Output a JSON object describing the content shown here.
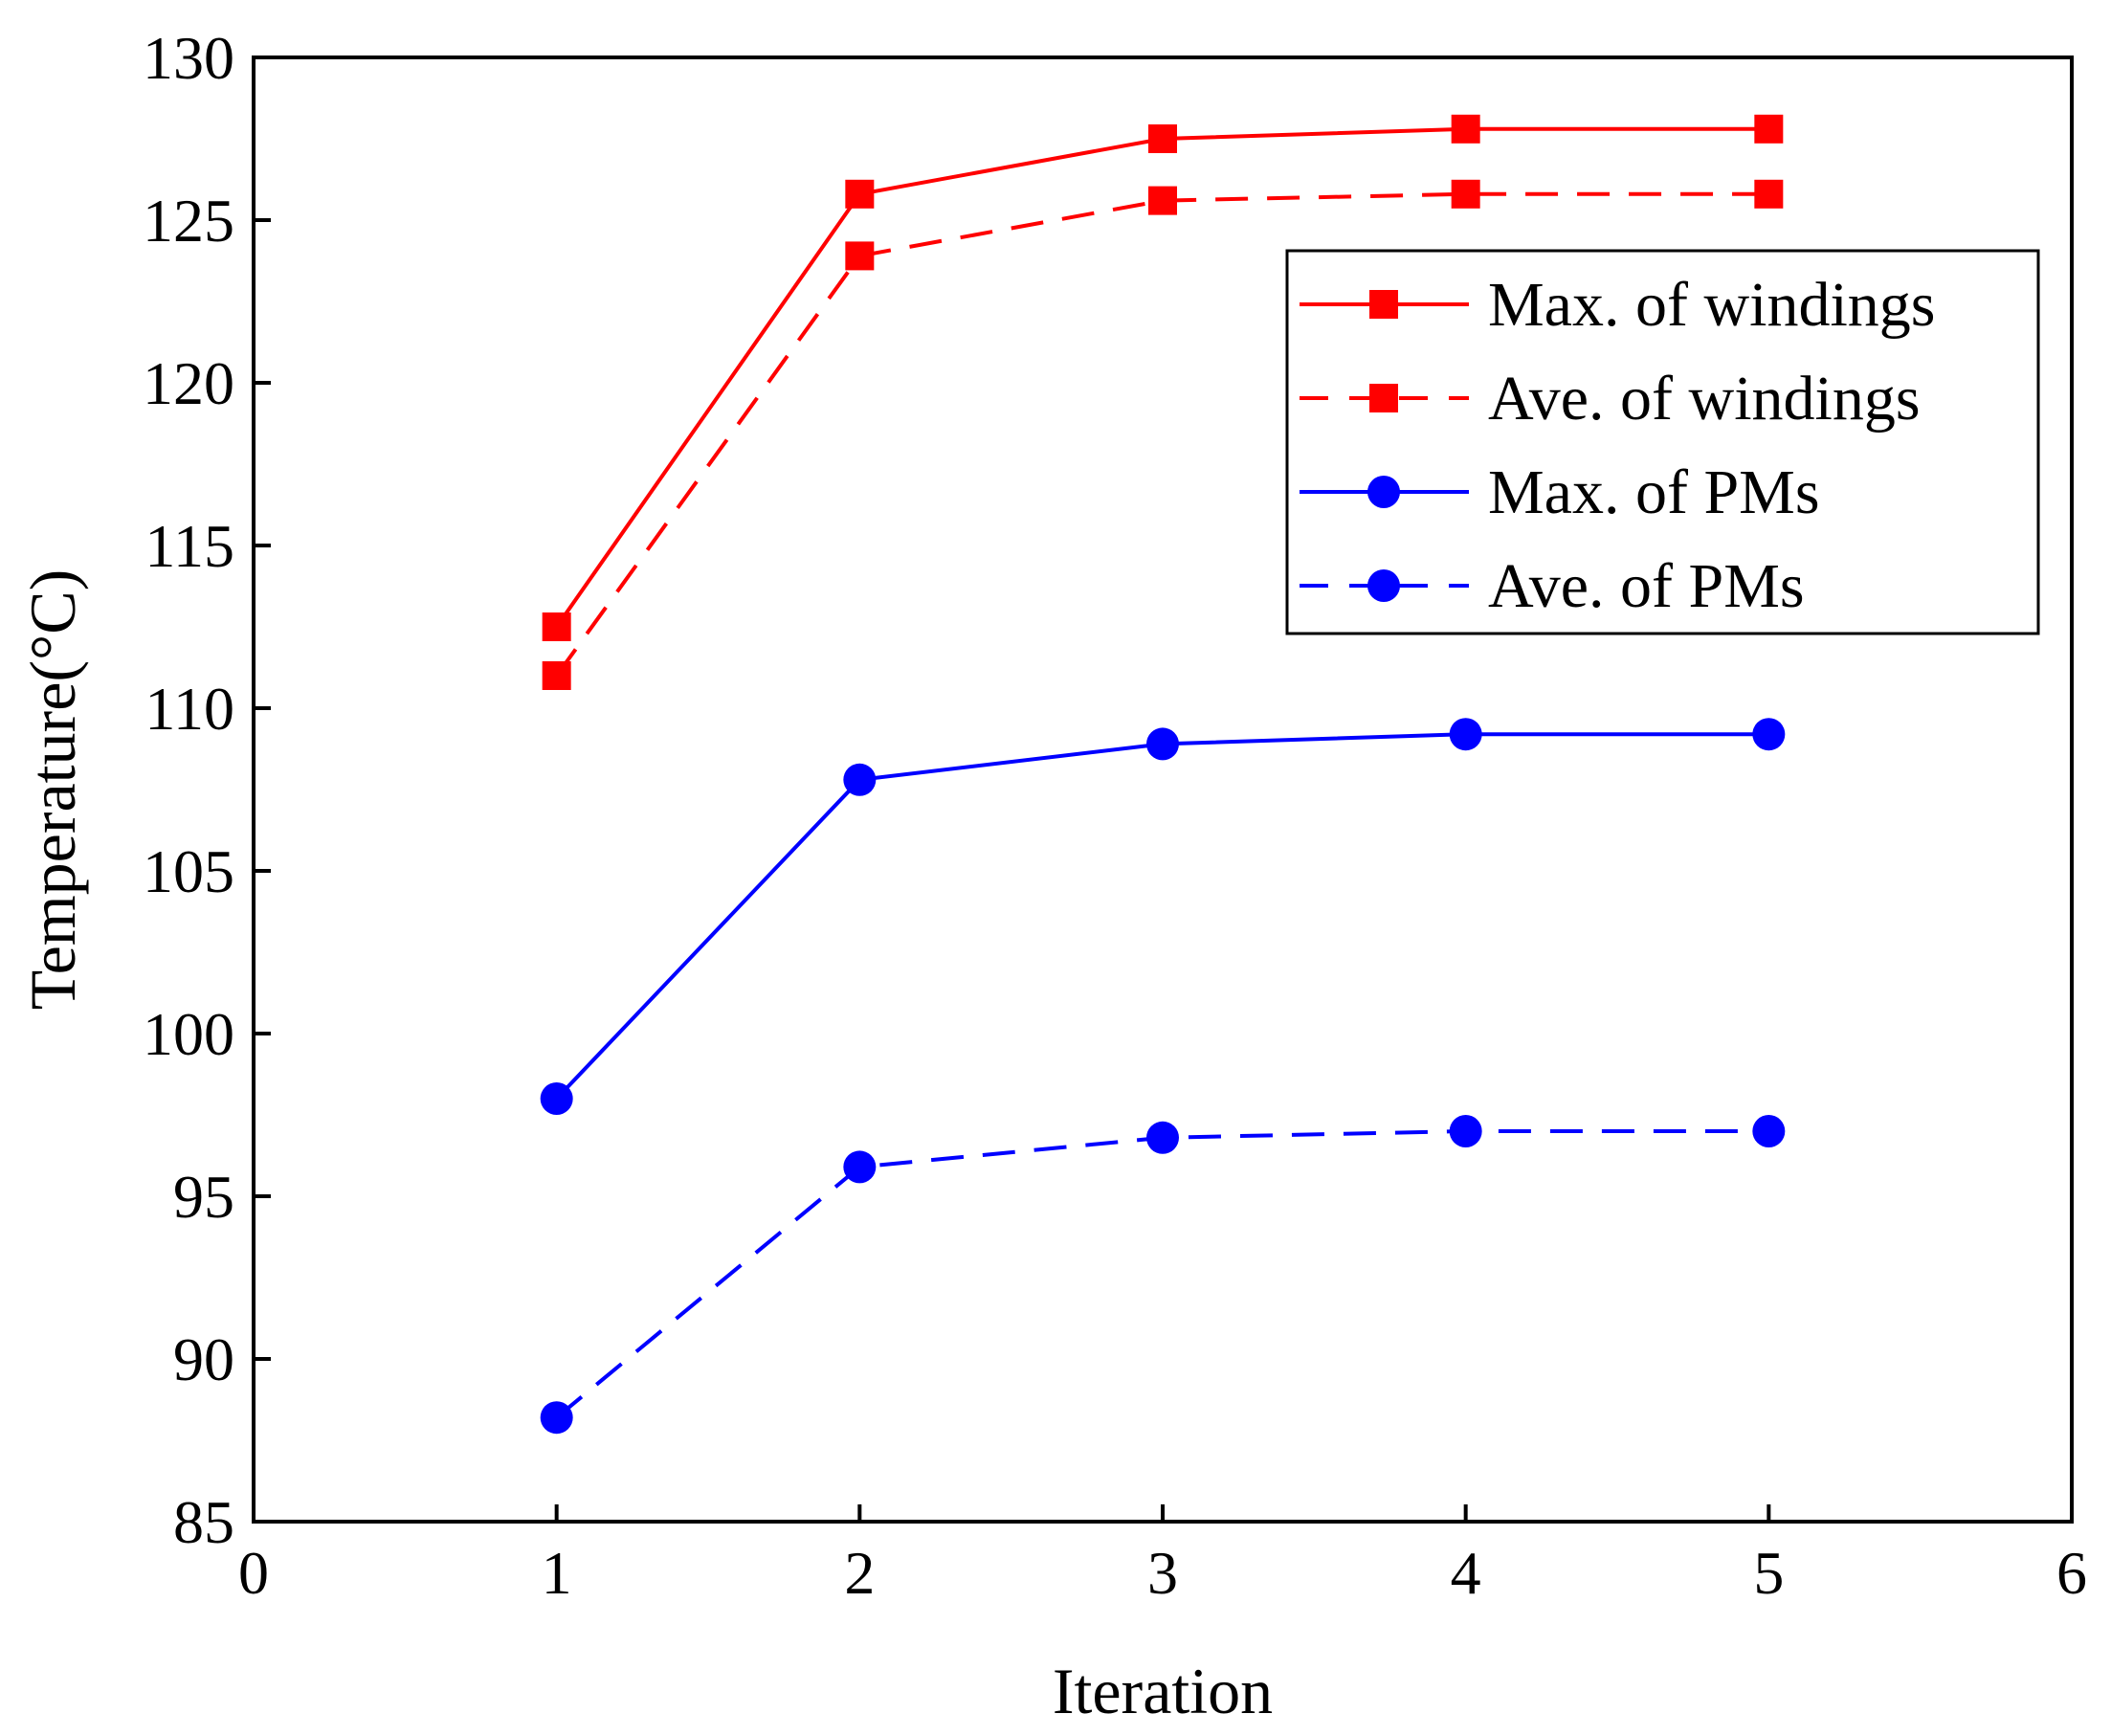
{
  "chart_data": {
    "type": "line",
    "xlabel": "Iteration",
    "ylabel": "Temperature(°C)",
    "xlim": [
      0,
      6
    ],
    "ylim": [
      85,
      130
    ],
    "x_ticks": [
      "0",
      "1",
      "2",
      "3",
      "4",
      "5",
      "6"
    ],
    "y_ticks": [
      "85",
      "90",
      "95",
      "100",
      "105",
      "110",
      "115",
      "120",
      "125",
      "130"
    ],
    "grid": false,
    "legend_position": "top-right",
    "x": [
      1,
      2,
      3,
      4,
      5
    ],
    "series": [
      {
        "name": "Max. of windings",
        "values": [
          112.5,
          125.8,
          127.5,
          127.8,
          127.8
        ],
        "color": "#ff0000",
        "dash": "solid",
        "marker": "square"
      },
      {
        "name": "Ave. of windings",
        "values": [
          111.0,
          123.9,
          125.6,
          125.8,
          125.8
        ],
        "color": "#ff0000",
        "dash": "dashed",
        "marker": "square"
      },
      {
        "name": "Max. of PMs",
        "values": [
          98.0,
          107.8,
          108.9,
          109.2,
          109.2
        ],
        "color": "#0000ff",
        "dash": "solid",
        "marker": "circle"
      },
      {
        "name": "Ave. of PMs",
        "values": [
          88.2,
          95.9,
          96.8,
          97.0,
          97.0
        ],
        "color": "#0000ff",
        "dash": "dashed",
        "marker": "circle"
      }
    ]
  }
}
